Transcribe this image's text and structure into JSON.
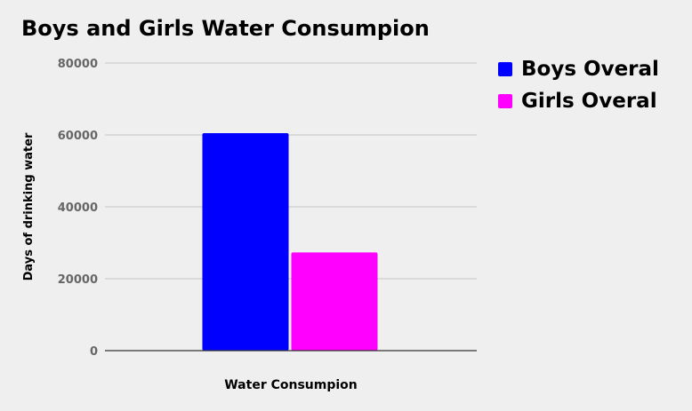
{
  "chart_data": {
    "type": "bar",
    "title": "Boys and Girls Water Consumpion",
    "xlabel": "Water Consumpion",
    "ylabel": "Days of drinking water",
    "categories": [
      "Water Consumpion"
    ],
    "series": [
      {
        "name": "Boys Overal",
        "values": [
          60500
        ],
        "color": "#0000ff"
      },
      {
        "name": "Girls Overal",
        "values": [
          27300
        ],
        "color": "#ff00ff"
      }
    ],
    "ylim": [
      0,
      80000
    ],
    "yticks": [
      "0",
      "20000",
      "40000",
      "60000",
      "80000"
    ],
    "grid": true,
    "legend_position": "top-right"
  }
}
